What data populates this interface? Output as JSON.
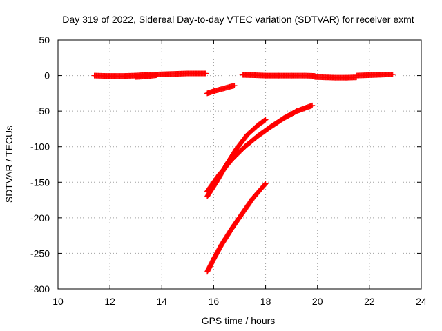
{
  "chart_data": {
    "type": "scatter",
    "title": "Day 319 of 2022, Sidereal Day-to-day VTEC variation (SDTVAR) for receiver exmt",
    "xlabel": "GPS time / hours",
    "ylabel": "SDTVAR / TECUs",
    "xlim": [
      10,
      24
    ],
    "ylim": [
      -300,
      50
    ],
    "xticks": [
      10,
      12,
      14,
      16,
      18,
      20,
      22,
      24
    ],
    "yticks": [
      -300,
      -250,
      -200,
      -150,
      -100,
      -50,
      0,
      50
    ],
    "grid": true,
    "legend": "none",
    "marker": "plus",
    "series_color": "#ff0000",
    "series": [
      {
        "x": [
          11.4,
          11.8,
          12.2,
          12.6,
          13.0,
          13.4,
          13.8,
          14.2,
          14.6,
          15.0,
          15.4,
          15.7
        ],
        "y": [
          0.0,
          -0.5,
          -0.5,
          -0.5,
          0.0,
          1.0,
          1.5,
          2.0,
          2.5,
          3.0,
          3.0,
          3.0
        ]
      },
      {
        "x": [
          13.0,
          13.4,
          13.8
        ],
        "y": [
          -2.0,
          -1.0,
          0.5
        ]
      },
      {
        "x": [
          15.75,
          16.0,
          16.4,
          16.8
        ],
        "y": [
          -25,
          -22,
          -18,
          -14
        ]
      },
      {
        "x": [
          15.75,
          16.1,
          16.5,
          16.9,
          17.3,
          17.7,
          18.0
        ],
        "y": [
          -170,
          -150,
          -125,
          -102,
          -83,
          -70,
          -62
        ]
      },
      {
        "x": [
          15.75,
          16.2,
          16.7,
          17.2,
          17.7,
          18.2,
          18.7,
          19.2,
          19.8
        ],
        "y": [
          -163,
          -140,
          -118,
          -100,
          -85,
          -72,
          -60,
          -50,
          -42
        ]
      },
      {
        "x": [
          15.75,
          16.0,
          16.3,
          16.7,
          17.1,
          17.5,
          18.0
        ],
        "y": [
          -276,
          -258,
          -238,
          -215,
          -194,
          -173,
          -152
        ]
      },
      {
        "x": [
          17.1,
          17.6,
          18.0,
          18.5,
          19.0,
          19.5,
          19.9
        ],
        "y": [
          1.0,
          0.5,
          0.0,
          0.0,
          0.0,
          0.0,
          -0.5
        ]
      },
      {
        "x": [
          19.9,
          20.3,
          20.7,
          21.1,
          21.5
        ],
        "y": [
          -2.0,
          -2.5,
          -3.0,
          -3.0,
          -2.5
        ]
      },
      {
        "x": [
          21.5,
          21.9,
          22.3,
          22.6,
          22.9
        ],
        "y": [
          0.0,
          0.5,
          1.0,
          1.5,
          1.5
        ]
      }
    ]
  }
}
